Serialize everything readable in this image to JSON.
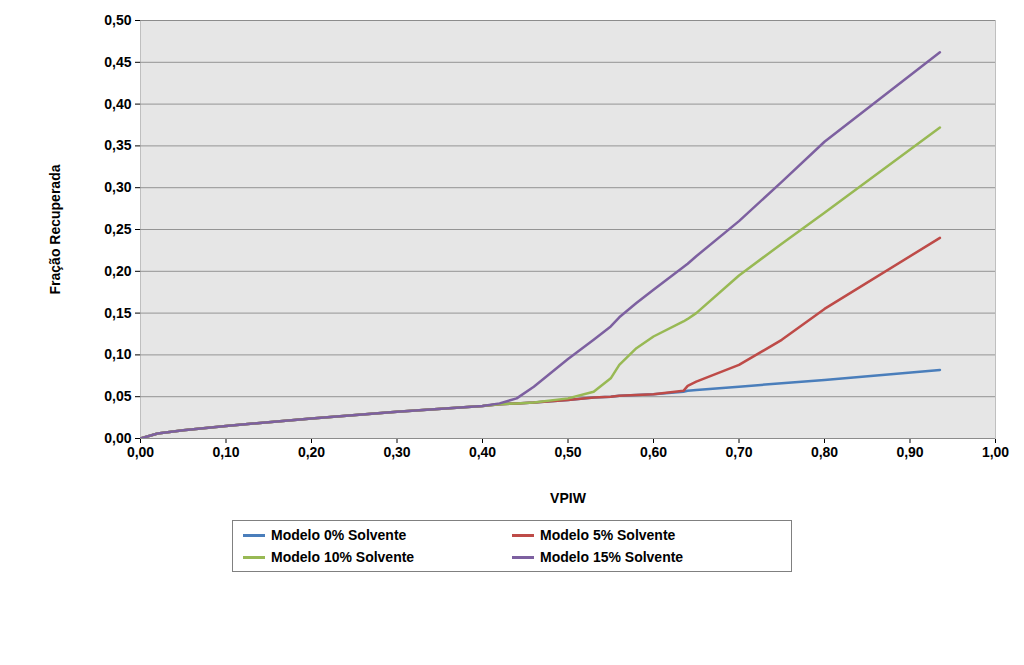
{
  "chart_data": {
    "type": "line",
    "xlabel": "VPIW",
    "ylabel": "Fração Recuperada",
    "x": [
      0,
      0.02,
      0.05,
      0.1,
      0.2,
      0.3,
      0.4,
      0.42,
      0.44,
      0.46,
      0.5,
      0.53,
      0.55,
      0.56,
      0.58,
      0.6,
      0.635,
      0.64,
      0.65,
      0.7,
      0.75,
      0.8,
      0.935
    ],
    "series": [
      {
        "name": "Modelo 0% Solvente",
        "color": "#4a7ebb",
        "values": [
          0,
          0.006,
          0.01,
          0.015,
          0.024,
          0.032,
          0.039,
          0.041,
          0.042,
          0.043,
          0.046,
          0.049,
          0.05,
          0.051,
          0.052,
          0.053,
          0.056,
          0.057,
          0.058,
          0.062,
          0.066,
          0.07,
          0.082
        ]
      },
      {
        "name": "Modelo 5% Solvente",
        "color": "#be4b48",
        "values": [
          0,
          0.006,
          0.01,
          0.015,
          0.024,
          0.032,
          0.039,
          0.041,
          0.042,
          0.043,
          0.046,
          0.049,
          0.05,
          0.051,
          0.052,
          0.053,
          0.057,
          0.063,
          0.068,
          0.088,
          0.118,
          0.155,
          0.24
        ]
      },
      {
        "name": "Modelo 10% Solvente",
        "color": "#98b954",
        "values": [
          0,
          0.006,
          0.01,
          0.015,
          0.024,
          0.032,
          0.039,
          0.041,
          0.042,
          0.043,
          0.048,
          0.056,
          0.072,
          0.088,
          0.108,
          0.122,
          0.14,
          0.143,
          0.15,
          0.195,
          0.233,
          0.27,
          0.372
        ]
      },
      {
        "name": "Modelo 15% Solvente",
        "color": "#7d60a0",
        "values": [
          0,
          0.006,
          0.01,
          0.015,
          0.024,
          0.032,
          0.039,
          0.042,
          0.048,
          0.062,
          0.095,
          0.118,
          0.134,
          0.145,
          0.162,
          0.178,
          0.205,
          0.209,
          0.218,
          0.26,
          0.307,
          0.355,
          0.462
        ]
      }
    ],
    "xlim": [
      0,
      1
    ],
    "xticks": [
      {
        "value": 0,
        "label": "0,00"
      },
      {
        "value": 0.1,
        "label": "0,10"
      },
      {
        "value": 0.2,
        "label": "0,20"
      },
      {
        "value": 0.3,
        "label": "0,30"
      },
      {
        "value": 0.4,
        "label": "0,40"
      },
      {
        "value": 0.5,
        "label": "0,50"
      },
      {
        "value": 0.6,
        "label": "0,60"
      },
      {
        "value": 0.7,
        "label": "0,70"
      },
      {
        "value": 0.8,
        "label": "0,80"
      },
      {
        "value": 0.9,
        "label": "0,90"
      },
      {
        "value": 1,
        "label": "1,00"
      }
    ],
    "ylim": [
      0,
      0.5
    ],
    "yticks": [
      {
        "value": 0,
        "label": "0,00"
      },
      {
        "value": 0.05,
        "label": "0,05"
      },
      {
        "value": 0.1,
        "label": "0,10"
      },
      {
        "value": 0.15,
        "label": "0,15"
      },
      {
        "value": 0.2,
        "label": "0,20"
      },
      {
        "value": 0.25,
        "label": "0,25"
      },
      {
        "value": 0.3,
        "label": "0,30"
      },
      {
        "value": 0.35,
        "label": "0,35"
      },
      {
        "value": 0.4,
        "label": "0,40"
      },
      {
        "value": 0.45,
        "label": "0,45"
      },
      {
        "value": 0.5,
        "label": "0,50"
      }
    ],
    "grid": true,
    "legend": "bottom"
  }
}
